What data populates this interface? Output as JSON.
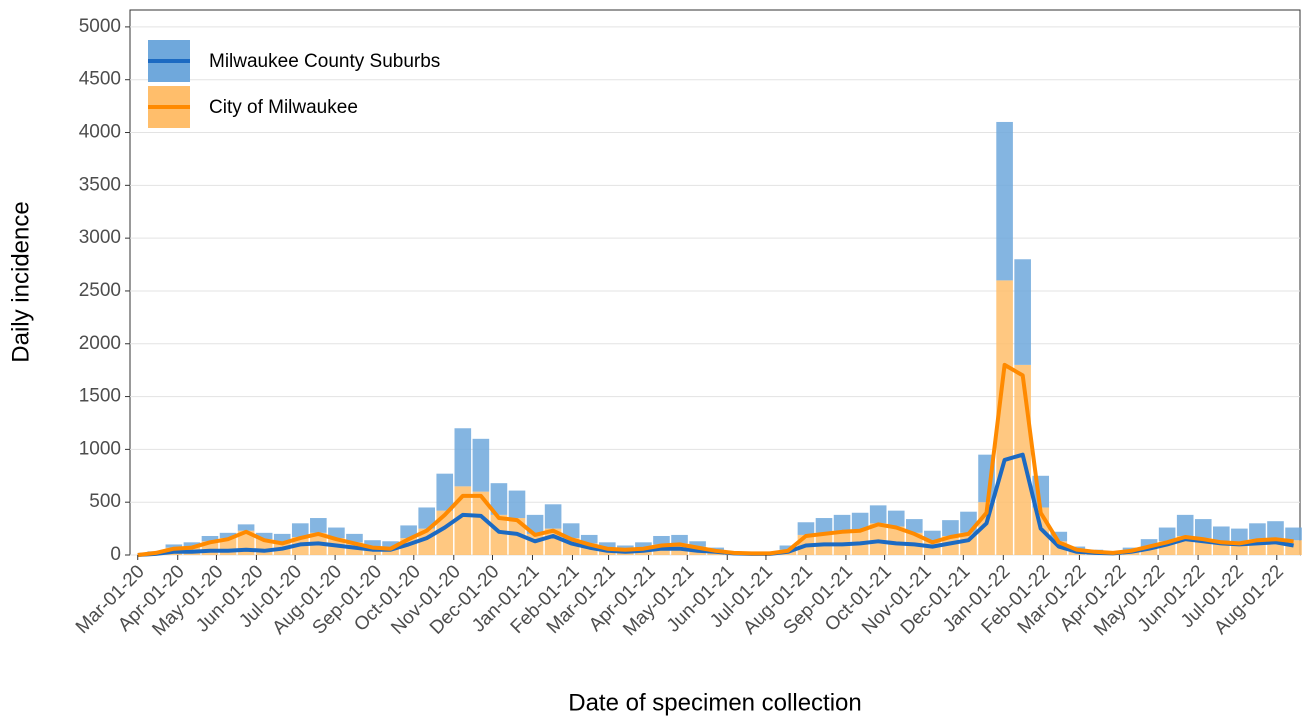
{
  "chart_data": {
    "type": "bar",
    "x_label": "Date of specimen collection",
    "y_label": "Daily incidence",
    "x": [
      "2020-03-01",
      "2020-03-15",
      "2020-03-29",
      "2020-04-12",
      "2020-04-26",
      "2020-05-10",
      "2020-05-24",
      "2020-06-07",
      "2020-06-21",
      "2020-07-05",
      "2020-07-19",
      "2020-08-02",
      "2020-08-16",
      "2020-08-30",
      "2020-09-13",
      "2020-09-27",
      "2020-10-11",
      "2020-10-25",
      "2020-11-08",
      "2020-11-22",
      "2020-12-06",
      "2020-12-20",
      "2021-01-03",
      "2021-01-17",
      "2021-01-31",
      "2021-02-14",
      "2021-02-28",
      "2021-03-14",
      "2021-03-28",
      "2021-04-11",
      "2021-04-25",
      "2021-05-09",
      "2021-05-23",
      "2021-06-06",
      "2021-06-20",
      "2021-07-04",
      "2021-07-18",
      "2021-08-01",
      "2021-08-15",
      "2021-08-29",
      "2021-09-12",
      "2021-09-26",
      "2021-10-10",
      "2021-10-24",
      "2021-11-07",
      "2021-11-21",
      "2021-12-05",
      "2021-12-19",
      "2022-01-02",
      "2022-01-16",
      "2022-01-30",
      "2022-02-13",
      "2022-02-27",
      "2022-03-13",
      "2022-03-27",
      "2022-04-10",
      "2022-04-24",
      "2022-05-08",
      "2022-05-22",
      "2022-06-05",
      "2022-06-19",
      "2022-07-03",
      "2022-07-17",
      "2022-07-31",
      "2022-08-14"
    ],
    "series": [
      {
        "name": "Milwaukee County Suburbs",
        "color": "#6fa8dc",
        "line_color": "#1c6ac2",
        "values": [
          0,
          10,
          30,
          40,
          50,
          50,
          60,
          60,
          80,
          130,
          140,
          100,
          80,
          60,
          60,
          120,
          200,
          350,
          550,
          500,
          300,
          260,
          180,
          230,
          140,
          80,
          50,
          40,
          50,
          80,
          80,
          50,
          30,
          15,
          10,
          10,
          40,
          120,
          140,
          150,
          160,
          170,
          150,
          130,
          100,
          150,
          200,
          450,
          1500,
          1000,
          300,
          90,
          30,
          20,
          15,
          30,
          70,
          130,
          200,
          180,
          140,
          130,
          150,
          160,
          120
        ],
        "rolling_values": [
          0,
          10,
          30,
          30,
          40,
          40,
          50,
          40,
          60,
          100,
          110,
          90,
          70,
          50,
          50,
          100,
          160,
          260,
          380,
          370,
          220,
          200,
          130,
          180,
          110,
          70,
          40,
          30,
          40,
          60,
          60,
          40,
          30,
          15,
          10,
          10,
          30,
          90,
          100,
          100,
          110,
          130,
          110,
          100,
          80,
          110,
          140,
          300,
          900,
          950,
          250,
          80,
          30,
          20,
          15,
          30,
          60,
          100,
          150,
          130,
          110,
          100,
          110,
          120,
          90
        ]
      },
      {
        "name": "City of Milwaukee",
        "color": "#ffbe6b",
        "line_color": "#ff8a00",
        "values": [
          0,
          25,
          70,
          80,
          130,
          160,
          230,
          150,
          120,
          170,
          210,
          160,
          120,
          80,
          70,
          160,
          250,
          420,
          650,
          600,
          380,
          350,
          200,
          250,
          160,
          110,
          70,
          50,
          70,
          100,
          110,
          80,
          40,
          20,
          15,
          15,
          50,
          190,
          210,
          230,
          240,
          300,
          270,
          210,
          130,
          180,
          210,
          500,
          2600,
          1800,
          450,
          130,
          50,
          30,
          20,
          40,
          80,
          130,
          180,
          160,
          130,
          120,
          150,
          160,
          140
        ],
        "rolling_values": [
          0,
          20,
          60,
          70,
          120,
          150,
          220,
          140,
          110,
          160,
          200,
          150,
          110,
          70,
          60,
          150,
          230,
          380,
          560,
          560,
          350,
          330,
          190,
          230,
          150,
          100,
          60,
          50,
          60,
          90,
          100,
          70,
          40,
          20,
          15,
          15,
          40,
          180,
          200,
          220,
          230,
          290,
          260,
          200,
          120,
          170,
          200,
          400,
          1800,
          1700,
          400,
          120,
          50,
          30,
          20,
          40,
          80,
          120,
          170,
          150,
          120,
          110,
          140,
          150,
          130
        ]
      }
    ],
    "xlim": [
      "2020-02-24",
      "2022-08-19"
    ],
    "xticks": [
      {
        "value": "2020-03-01",
        "label": "Mar-01-20"
      },
      {
        "value": "2020-04-01",
        "label": "Apr-01-20"
      },
      {
        "value": "2020-05-01",
        "label": "May-01-20"
      },
      {
        "value": "2020-06-01",
        "label": "Jun-01-20"
      },
      {
        "value": "2020-07-01",
        "label": "Jul-01-20"
      },
      {
        "value": "2020-08-01",
        "label": "Aug-01-20"
      },
      {
        "value": "2020-09-01",
        "label": "Sep-01-20"
      },
      {
        "value": "2020-10-01",
        "label": "Oct-01-20"
      },
      {
        "value": "2020-11-01",
        "label": "Nov-01-20"
      },
      {
        "value": "2020-12-01",
        "label": "Dec-01-20"
      },
      {
        "value": "2021-01-01",
        "label": "Jan-01-21"
      },
      {
        "value": "2021-02-01",
        "label": "Feb-01-21"
      },
      {
        "value": "2021-03-01",
        "label": "Mar-01-21"
      },
      {
        "value": "2021-04-01",
        "label": "Apr-01-21"
      },
      {
        "value": "2021-05-01",
        "label": "May-01-21"
      },
      {
        "value": "2021-06-01",
        "label": "Jun-01-21"
      },
      {
        "value": "2021-07-01",
        "label": "Jul-01-21"
      },
      {
        "value": "2021-08-01",
        "label": "Aug-01-21"
      },
      {
        "value": "2021-09-01",
        "label": "Sep-01-21"
      },
      {
        "value": "2021-10-01",
        "label": "Oct-01-21"
      },
      {
        "value": "2021-11-01",
        "label": "Nov-01-21"
      },
      {
        "value": "2021-12-01",
        "label": "Dec-01-21"
      },
      {
        "value": "2022-01-01",
        "label": "Jan-01-22"
      },
      {
        "value": "2022-02-01",
        "label": "Feb-01-22"
      },
      {
        "value": "2022-03-01",
        "label": "Mar-01-22"
      },
      {
        "value": "2022-04-01",
        "label": "Apr-01-22"
      },
      {
        "value": "2022-05-01",
        "label": "May-01-22"
      },
      {
        "value": "2022-06-01",
        "label": "Jun-01-22"
      },
      {
        "value": "2022-07-01",
        "label": "Jul-01-22"
      },
      {
        "value": "2022-08-01",
        "label": "Aug-01-22"
      }
    ],
    "ylim": [
      0,
      5160
    ],
    "yticks": [
      0,
      500,
      1000,
      1500,
      2000,
      2500,
      3000,
      3500,
      4000,
      4500,
      5000
    ],
    "grid": true,
    "legend": "top-left"
  }
}
